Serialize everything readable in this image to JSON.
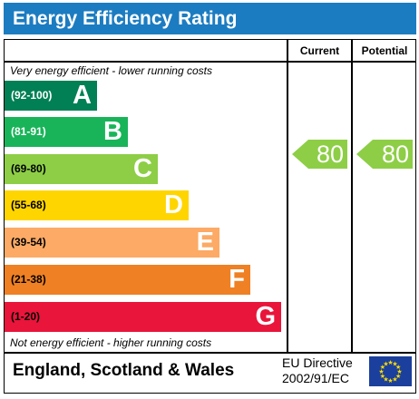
{
  "title": "Energy Efficiency Rating",
  "columns": {
    "current": "Current",
    "potential": "Potential"
  },
  "top_note": "Very energy efficient - lower running costs",
  "bottom_note": "Not energy efficient - higher running costs",
  "bands": [
    {
      "range": "(92-100)",
      "letter": "A",
      "color": "#008054"
    },
    {
      "range": "(81-91)",
      "letter": "B",
      "color": "#19b459"
    },
    {
      "range": "(69-80)",
      "letter": "C",
      "color": "#8dce46"
    },
    {
      "range": "(55-68)",
      "letter": "D",
      "color": "#ffd500"
    },
    {
      "range": "(39-54)",
      "letter": "E",
      "color": "#fcaa65"
    },
    {
      "range": "(21-38)",
      "letter": "F",
      "color": "#ef8023"
    },
    {
      "range": "(1-20)",
      "letter": "G",
      "color": "#e9153b"
    }
  ],
  "current": {
    "value": "80",
    "color": "#8dce46"
  },
  "potential": {
    "value": "80",
    "color": "#8dce46"
  },
  "footer": {
    "country": "England, Scotland & Wales",
    "directive_line1": "EU Directive",
    "directive_line2": "2002/91/EC",
    "flag_color": "#1b3f9c",
    "star_color": "#ffdd00"
  }
}
